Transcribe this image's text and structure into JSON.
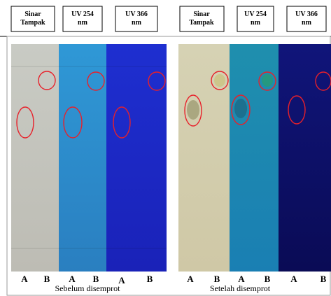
{
  "headers": {
    "left": [
      {
        "lines": [
          "Sinar",
          "Tampak"
        ]
      },
      {
        "lines": [
          "UV 254",
          "nm"
        ]
      },
      {
        "lines": [
          "UV 366",
          "nm"
        ]
      }
    ],
    "right": [
      {
        "lines": [
          "Sinar",
          "Tampak"
        ]
      },
      {
        "lines": [
          "UV 254",
          "nm"
        ]
      },
      {
        "lines": [
          "UV 366",
          "nm"
        ]
      }
    ]
  },
  "lanes": {
    "left": [
      "A",
      "B",
      "A",
      "B",
      "A",
      "B"
    ],
    "right": [
      "A",
      "B",
      "A",
      "B",
      "A",
      "B"
    ]
  },
  "captions": {
    "left": "Sebelum disemprot",
    "right": "Setelah disemprot"
  }
}
